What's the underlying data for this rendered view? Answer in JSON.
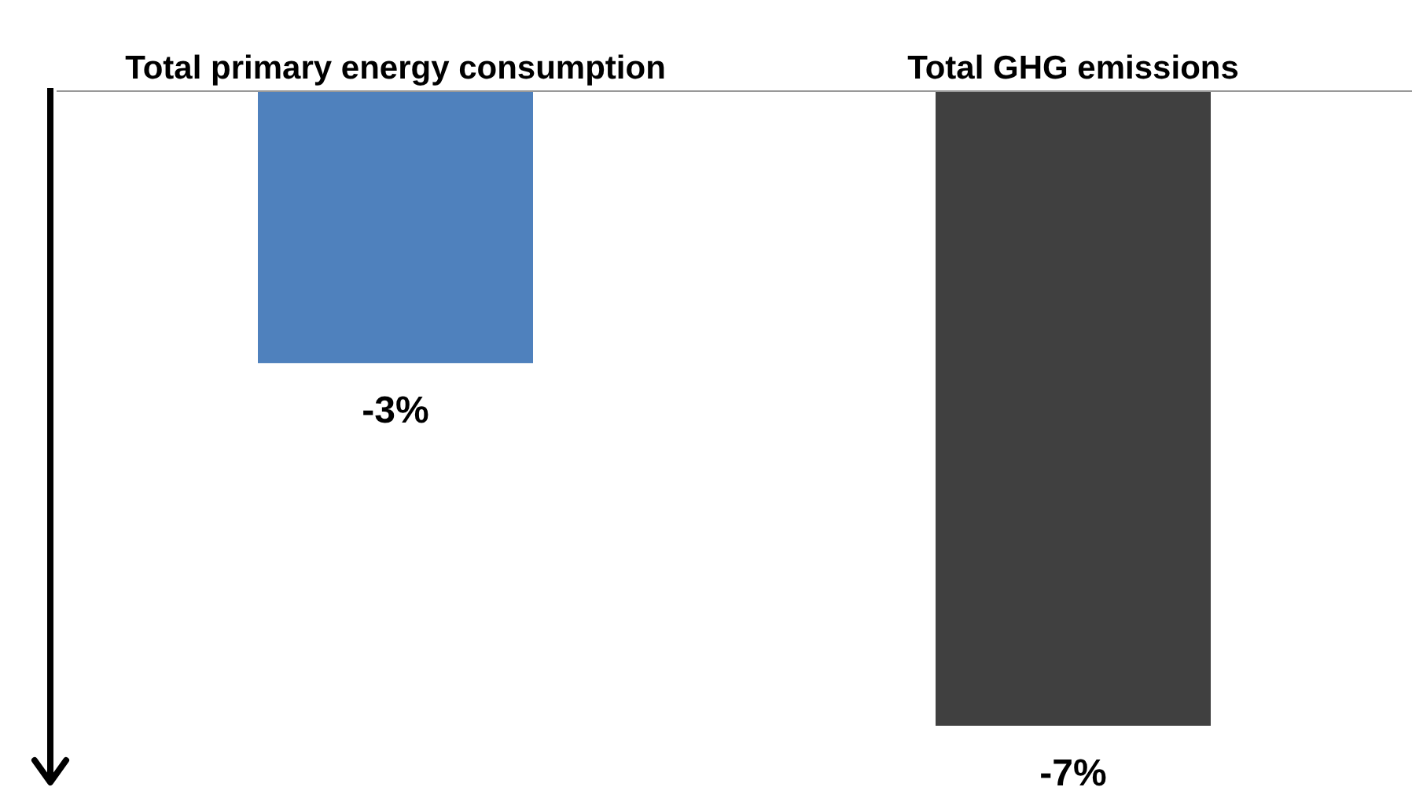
{
  "chart_data": {
    "type": "bar",
    "categories": [
      "Total primary energy consumption",
      "Total GHG emissions"
    ],
    "values": [
      -3,
      -7
    ],
    "colors": [
      "#4f81bd",
      "#404040"
    ],
    "value_labels": [
      "-3%",
      "-7%"
    ]
  }
}
